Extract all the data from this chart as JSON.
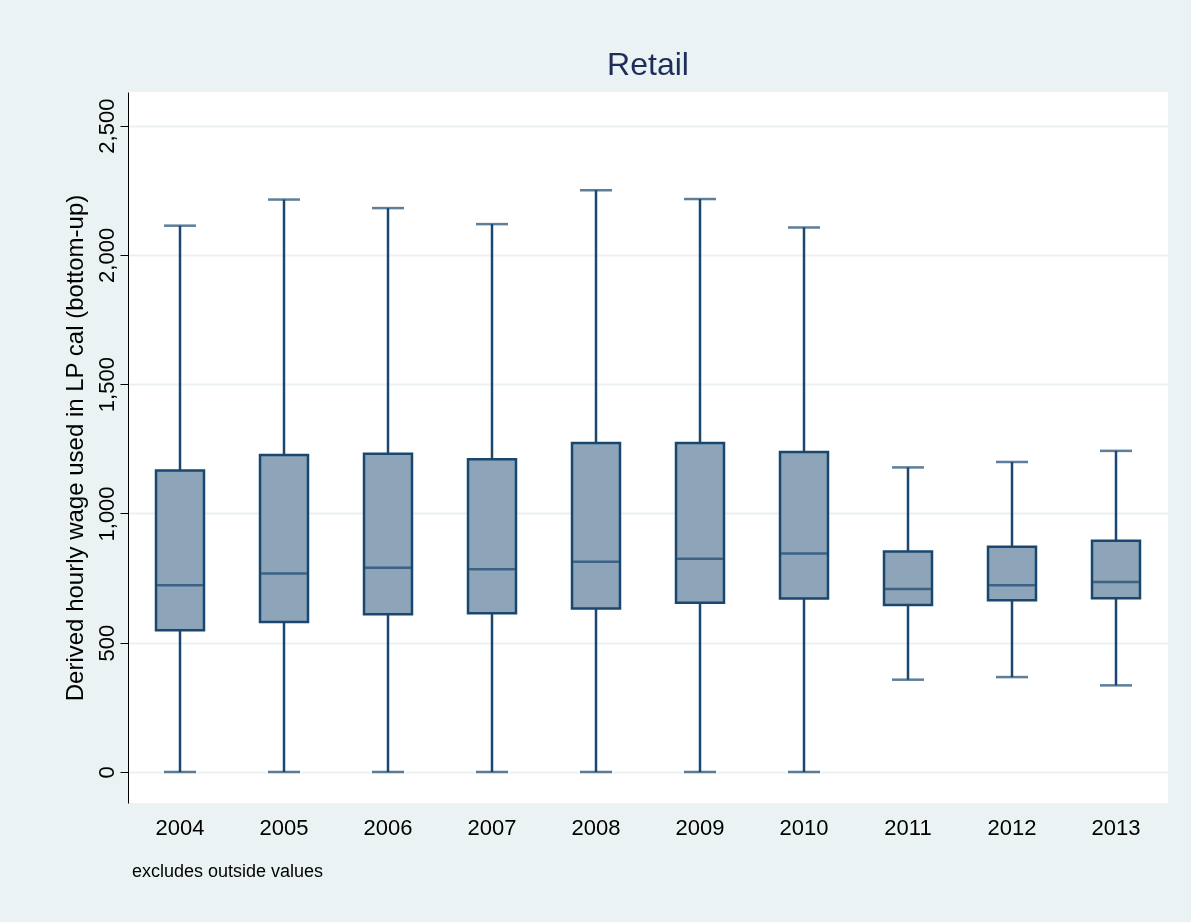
{
  "chart_data": {
    "type": "box",
    "title": "Retail",
    "ylabel": "Derived hourly wage used in LP cal (bottom-up)",
    "categories": [
      "2004",
      "2005",
      "2006",
      "2007",
      "2008",
      "2009",
      "2010",
      "2011",
      "2012",
      "2013"
    ],
    "boxes": [
      {
        "low": 0,
        "q1": 548,
        "median": 722,
        "q3": 1166,
        "high": 2113
      },
      {
        "low": 0,
        "q1": 580,
        "median": 768,
        "q3": 1226,
        "high": 2214
      },
      {
        "low": 0,
        "q1": 610,
        "median": 790,
        "q3": 1231,
        "high": 2181
      },
      {
        "low": 0,
        "q1": 614,
        "median": 784,
        "q3": 1210,
        "high": 2119
      },
      {
        "low": 0,
        "q1": 632,
        "median": 813,
        "q3": 1272,
        "high": 2250
      },
      {
        "low": 0,
        "q1": 655,
        "median": 825,
        "q3": 1272,
        "high": 2216
      },
      {
        "low": 0,
        "q1": 671,
        "median": 845,
        "q3": 1238,
        "high": 2106
      },
      {
        "low": 357,
        "q1": 646,
        "median": 708,
        "q3": 853,
        "high": 1178
      },
      {
        "low": 367,
        "q1": 664,
        "median": 722,
        "q3": 871,
        "high": 1199
      },
      {
        "low": 335,
        "q1": 672,
        "median": 735,
        "q3": 894,
        "high": 1242
      }
    ],
    "color": "#8ea4b8",
    "ylim": [
      -120,
      2630
    ],
    "yticks": [
      {
        "value": 0,
        "label": "0"
      },
      {
        "value": 500,
        "label": "500"
      },
      {
        "value": 1000,
        "label": "1,000"
      },
      {
        "value": 1500,
        "label": "1,500"
      },
      {
        "value": 2000,
        "label": "2,000"
      },
      {
        "value": 2500,
        "label": "2,500"
      }
    ],
    "grid": "y",
    "annotations": [
      "excludes outside values"
    ]
  }
}
